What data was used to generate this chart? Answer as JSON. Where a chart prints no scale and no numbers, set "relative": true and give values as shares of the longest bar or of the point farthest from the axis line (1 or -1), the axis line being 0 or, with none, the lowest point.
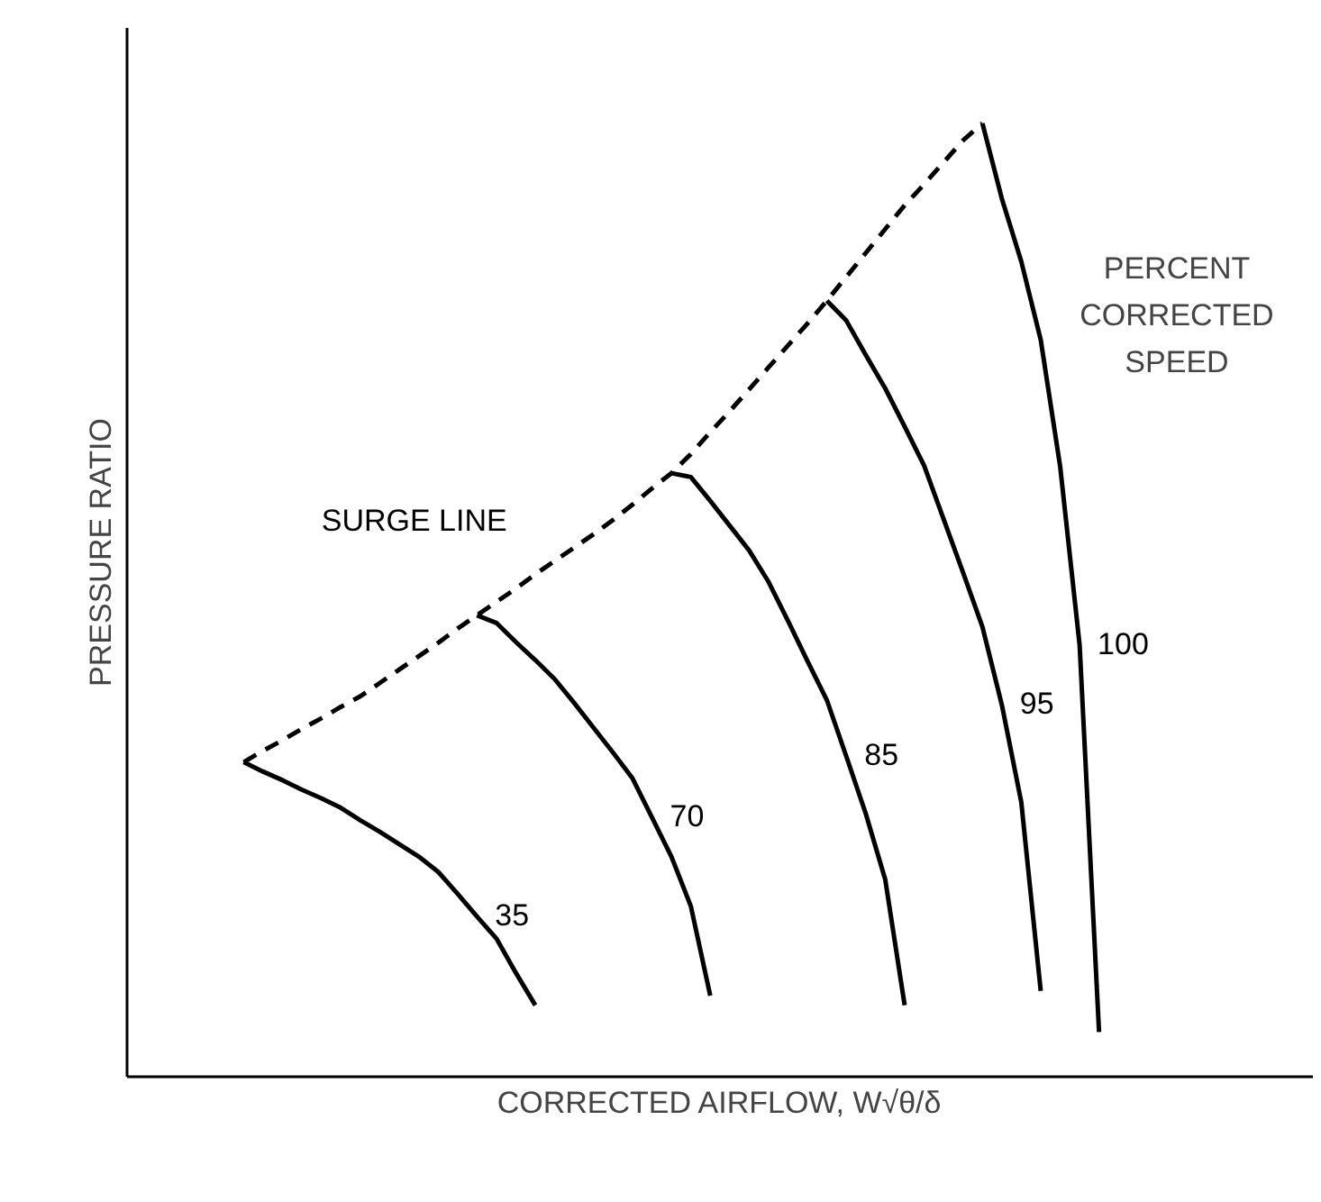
{
  "chart_data": {
    "type": "line",
    "relative": true,
    "xlabel": "CORRECTED AIRFLOW, W√θ/δ",
    "ylabel": "PRESSURE RATIO",
    "annotations": [
      "PERCENT CORRECTED SPEED"
    ],
    "marker": "none",
    "categories": [
      null,
      null,
      null,
      null,
      null,
      null,
      null,
      null,
      null,
      null,
      null,
      null,
      null,
      null,
      null,
      null,
      null,
      null,
      null,
      null,
      null,
      null,
      null,
      null,
      null,
      null,
      null,
      null,
      null,
      null,
      null,
      null,
      null,
      null,
      null,
      null,
      null,
      null,
      null,
      null,
      null,
      null,
      null,
      null,
      null
    ],
    "series": [
      {
        "name": "SURGE LINE",
        "color": "#000000",
        "line_style": "dashed",
        "values": [
          0.33,
          0.342,
          0.353,
          0.365,
          0.376,
          0.388,
          0.399,
          0.413,
          0.427,
          0.441,
          0.455,
          0.47,
          0.484,
          0.498,
          0.512,
          0.527,
          0.541,
          0.555,
          0.569,
          0.584,
          0.6,
          0.617,
          0.633,
          0.653,
          0.676,
          0.698,
          0.721,
          0.744,
          0.767,
          0.79,
          0.814,
          0.839,
          0.864,
          0.889,
          0.914,
          0.936,
          0.959,
          0.982,
          1.0,
          null,
          null,
          null,
          null,
          null,
          null
        ]
      },
      {
        "name": "35",
        "color": "#000000",
        "line_style": "solid",
        "values": [
          0.33,
          0.32,
          0.311,
          0.301,
          0.292,
          0.282,
          0.269,
          0.257,
          0.244,
          0.231,
          0.215,
          0.192,
          0.168,
          0.145,
          0.109,
          0.075,
          null,
          null,
          null,
          null,
          null,
          null,
          null,
          null,
          null,
          null,
          null,
          null,
          null,
          null,
          null,
          null,
          null,
          null,
          null,
          null,
          null,
          null,
          null,
          null,
          null,
          null,
          null,
          null,
          null
        ]
      },
      {
        "name": "70",
        "color": "#000000",
        "line_style": "solid",
        "values": [
          null,
          null,
          null,
          null,
          null,
          null,
          null,
          null,
          null,
          null,
          null,
          null,
          0.484,
          0.476,
          0.456,
          0.437,
          0.417,
          0.392,
          0.366,
          0.34,
          0.313,
          0.272,
          0.231,
          0.179,
          0.085,
          null,
          null,
          null,
          null,
          null,
          null,
          null,
          null,
          null,
          null,
          null,
          null,
          null,
          null,
          null,
          null,
          null,
          null,
          null,
          null
        ]
      },
      {
        "name": "85",
        "color": "#000000",
        "line_style": "solid",
        "values": [
          null,
          null,
          null,
          null,
          null,
          null,
          null,
          null,
          null,
          null,
          null,
          null,
          null,
          null,
          null,
          null,
          null,
          null,
          null,
          null,
          null,
          null,
          0.633,
          0.629,
          0.604,
          0.578,
          0.552,
          0.519,
          0.478,
          0.436,
          0.395,
          0.336,
          0.276,
          0.207,
          0.075,
          null,
          null,
          null,
          null,
          null,
          null,
          null,
          null,
          null,
          null
        ]
      },
      {
        "name": "95",
        "color": "#000000",
        "line_style": "solid",
        "values": [
          null,
          null,
          null,
          null,
          null,
          null,
          null,
          null,
          null,
          null,
          null,
          null,
          null,
          null,
          null,
          null,
          null,
          null,
          null,
          null,
          null,
          null,
          null,
          null,
          null,
          null,
          null,
          null,
          null,
          null,
          0.814,
          0.793,
          0.757,
          0.722,
          0.682,
          0.641,
          0.585,
          0.529,
          0.472,
          0.39,
          0.288,
          0.09,
          null,
          null,
          null
        ]
      },
      {
        "name": "100",
        "color": "#000000",
        "line_style": "solid",
        "values": [
          null,
          null,
          null,
          null,
          null,
          null,
          null,
          null,
          null,
          null,
          null,
          null,
          null,
          null,
          null,
          null,
          null,
          null,
          null,
          null,
          null,
          null,
          null,
          null,
          null,
          null,
          null,
          null,
          null,
          null,
          null,
          null,
          null,
          null,
          null,
          null,
          null,
          null,
          1.0,
          0.921,
          0.855,
          0.773,
          0.64,
          0.453,
          0.047
        ]
      }
    ]
  }
}
